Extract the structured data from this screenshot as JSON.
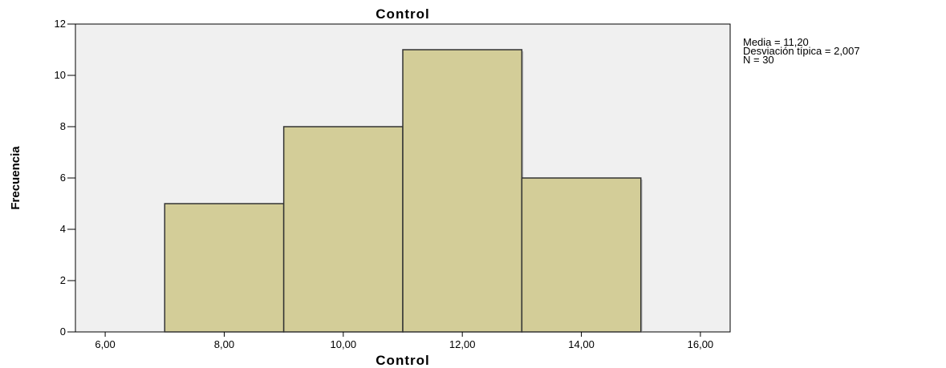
{
  "chart_data": {
    "type": "bar",
    "title": "Control",
    "xlabel": "Control",
    "ylabel": "Frecuencia",
    "bins": [
      {
        "start": 7,
        "end": 9,
        "value": 5
      },
      {
        "start": 9,
        "end": 11,
        "value": 8
      },
      {
        "start": 11,
        "end": 13,
        "value": 11
      },
      {
        "start": 13,
        "end": 15,
        "value": 6
      }
    ],
    "xlim": [
      5.5,
      16.5
    ],
    "ylim": [
      0,
      12
    ],
    "x_ticks": [
      "6,00",
      "8,00",
      "10,00",
      "12,00",
      "14,00",
      "16,00"
    ],
    "x_tick_values": [
      6,
      8,
      10,
      12,
      14,
      16
    ],
    "y_ticks": [
      "0",
      "2",
      "4",
      "6",
      "8",
      "10",
      "12"
    ],
    "y_tick_values": [
      0,
      2,
      4,
      6,
      8,
      10,
      12
    ],
    "grid": false,
    "colors": {
      "bar_fill": "#d3cd98",
      "bar_stroke": "#333333",
      "plot_bg": "#f0f0f0"
    }
  },
  "stats": {
    "mean": "Media = 11,20",
    "std": "Desviación típica = 2,007",
    "n": "N = 30"
  }
}
